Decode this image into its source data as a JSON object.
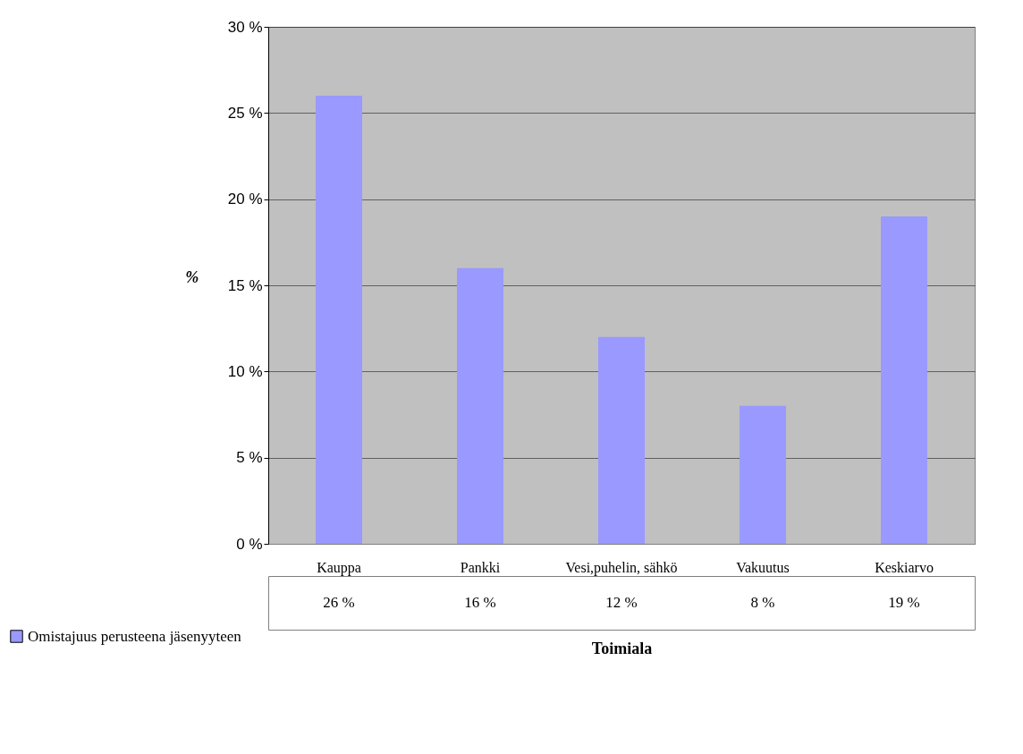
{
  "chart_data": {
    "type": "bar",
    "xlabel": "Toimiala",
    "ylabel": "%",
    "categories": [
      "Kauppa",
      "Pankki",
      "Vesi,puhelin, sähkö",
      "Vakuutus",
      "Keskiarvo"
    ],
    "series": [
      {
        "name": "Omistajuus perusteena jäsenyyteen",
        "color": "#9999ff",
        "values": [
          26,
          16,
          12,
          8,
          19
        ],
        "value_labels": [
          "26 %",
          "16 %",
          "12 %",
          "8 %",
          "19 %"
        ]
      }
    ],
    "ylim": [
      0,
      30
    ],
    "yticks": [
      {
        "value": 0,
        "label": "0 %"
      },
      {
        "value": 5,
        "label": "5 %"
      },
      {
        "value": 10,
        "label": "10 %"
      },
      {
        "value": 15,
        "label": "15 %"
      },
      {
        "value": 20,
        "label": "20 %"
      },
      {
        "value": 25,
        "label": "25 %"
      },
      {
        "value": 30,
        "label": "30 %"
      }
    ],
    "grid": true,
    "legend": "bottom left"
  }
}
